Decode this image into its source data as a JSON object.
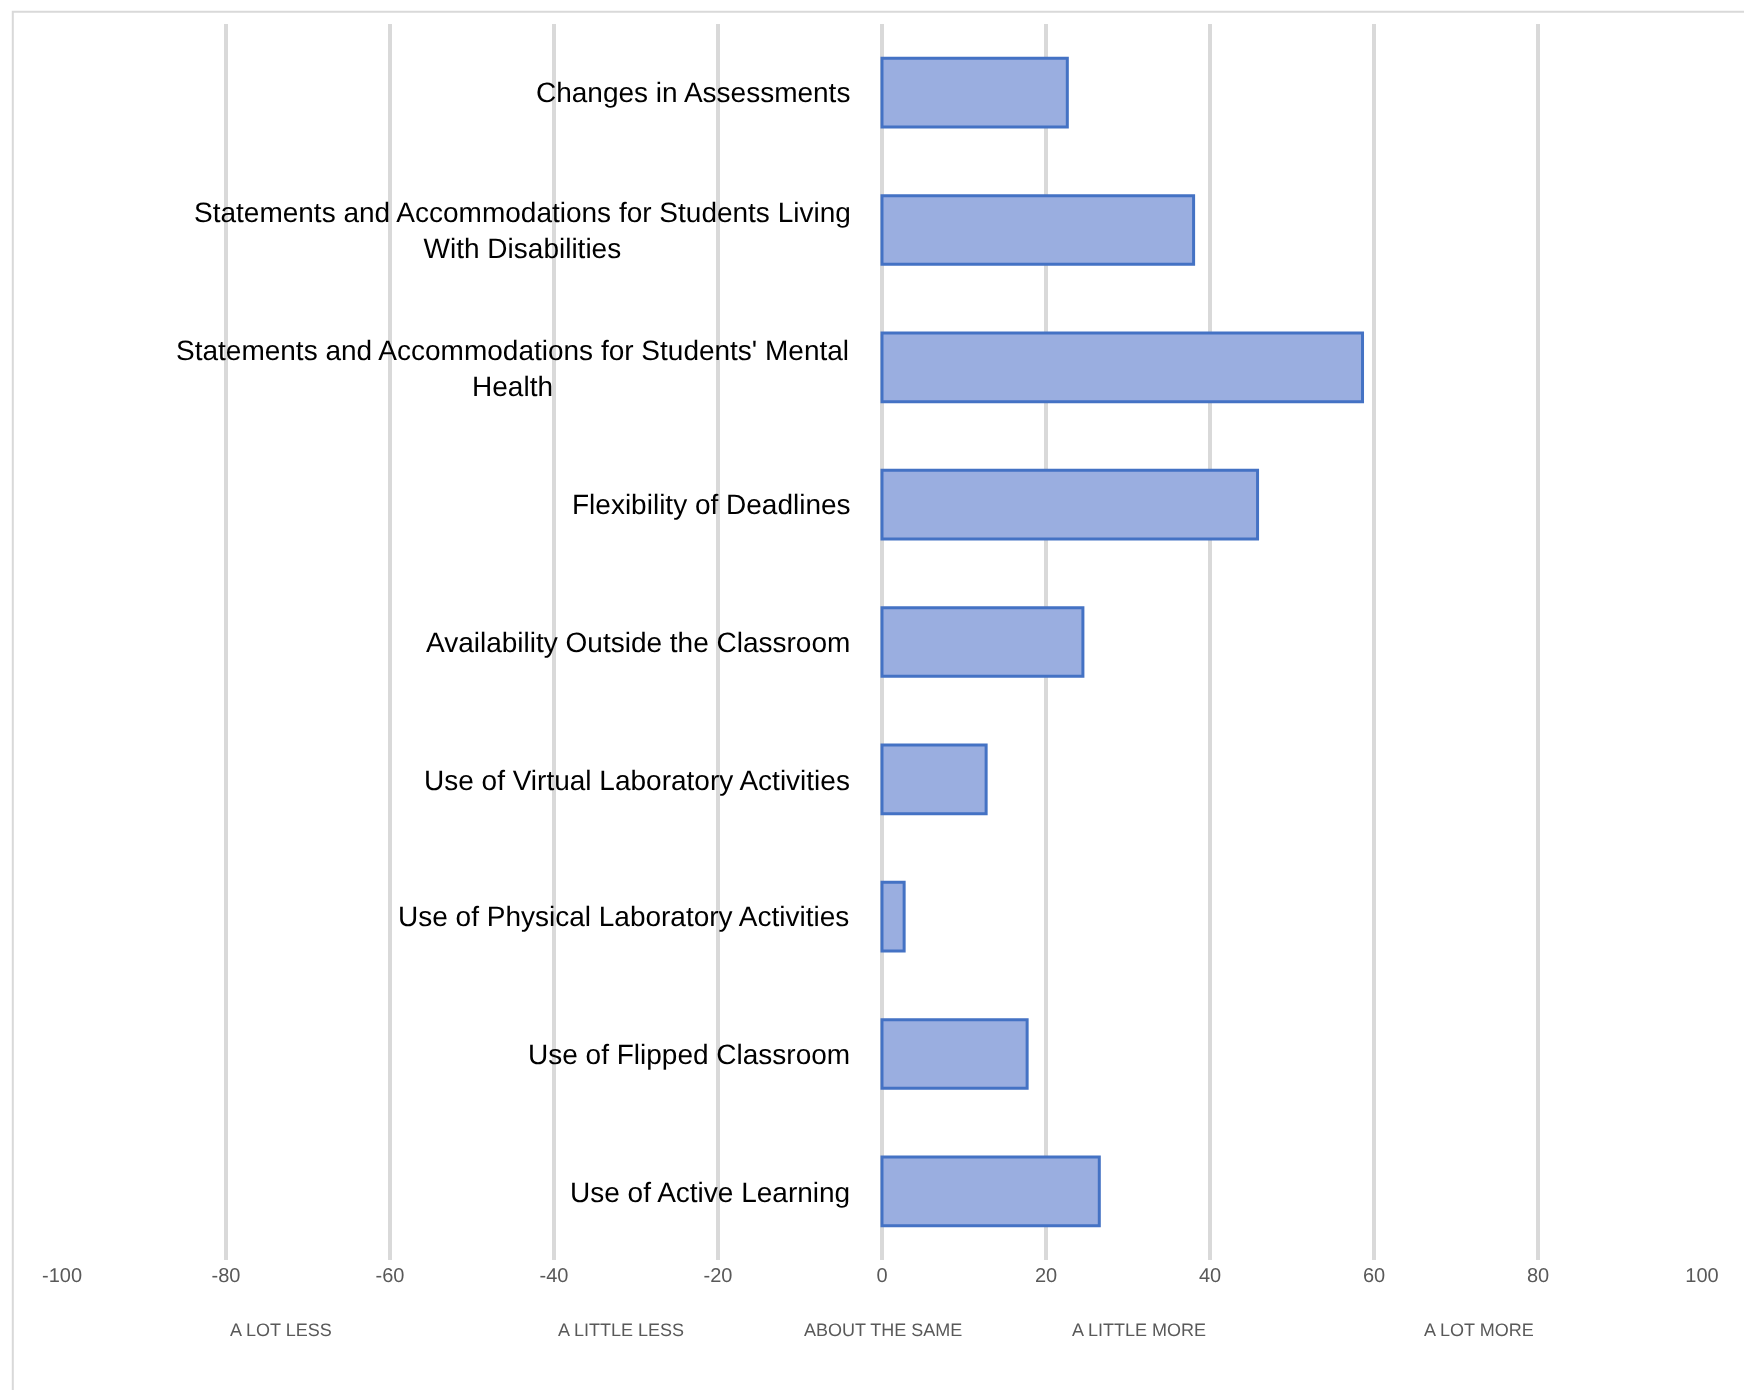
{
  "chart_data": {
    "type": "bar",
    "orientation": "horizontal",
    "categories": [
      "Changes in Assessments",
      "Statements and Accommodations for Students Living With Disabilities",
      "Statements and Accommodations for Students' Mental Health",
      "Flexibility of Deadlines",
      "Availability Outside the Classroom",
      "Use of Virtual Laboratory Activities",
      "Use of Physical Laboratory Activities",
      "Use of Flipped Classroom",
      "Use of Active Learning"
    ],
    "values": [
      22.6,
      38,
      58.6,
      45.8,
      24.5,
      12.7,
      2.7,
      17.7,
      26.5
    ],
    "color": "#9aaee0",
    "xlim": [
      -100,
      100
    ],
    "xticks": [
      -100,
      -80,
      -60,
      -40,
      -20,
      0,
      20,
      40,
      60,
      80,
      100
    ],
    "grid": "x",
    "legend": false,
    "annotations": [
      "A LOT LESS",
      "A LITTLE LESS",
      "ABOUT THE SAME",
      "A LITTLE MORE",
      "A LOT MORE"
    ]
  }
}
